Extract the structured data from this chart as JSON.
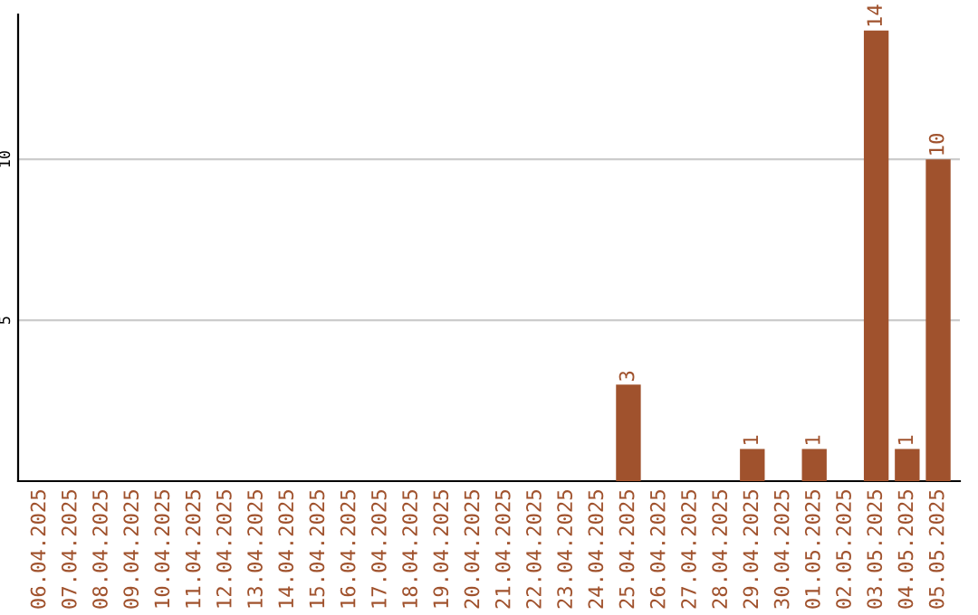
{
  "chart_data": {
    "type": "bar",
    "categories": [
      "06.04.2025",
      "07.04.2025",
      "08.04.2025",
      "09.04.2025",
      "10.04.2025",
      "11.04.2025",
      "12.04.2025",
      "13.04.2025",
      "14.04.2025",
      "15.04.2025",
      "16.04.2025",
      "17.04.2025",
      "18.04.2025",
      "19.04.2025",
      "20.04.2025",
      "21.04.2025",
      "22.04.2025",
      "23.04.2025",
      "24.04.2025",
      "25.04.2025",
      "26.04.2025",
      "27.04.2025",
      "28.04.2025",
      "29.04.2025",
      "30.04.2025",
      "01.05.2025",
      "02.05.2025",
      "03.05.2025",
      "04.05.2025",
      "05.05.2025"
    ],
    "values": [
      0,
      0,
      0,
      0,
      0,
      0,
      0,
      0,
      0,
      0,
      0,
      0,
      0,
      0,
      0,
      0,
      0,
      0,
      0,
      3,
      0,
      0,
      0,
      1,
      0,
      1,
      0,
      14,
      1,
      10
    ],
    "value_labels": [
      null,
      null,
      null,
      null,
      null,
      null,
      null,
      null,
      null,
      null,
      null,
      null,
      null,
      null,
      null,
      null,
      null,
      null,
      null,
      "3",
      null,
      null,
      null,
      "1",
      null,
      "1",
      null,
      "14",
      "1",
      "10"
    ],
    "color": "#a0522d",
    "ylim": [
      0,
      14.5
    ],
    "yticks": [
      5,
      10
    ],
    "grid": "y"
  }
}
